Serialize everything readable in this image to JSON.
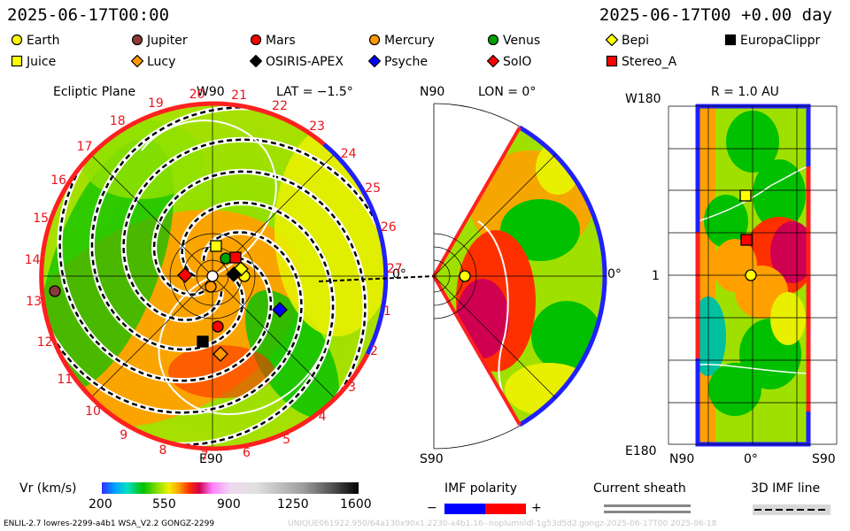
{
  "header": {
    "time_left": "2025-06-17T00:00",
    "time_right": "2025-06-17T00 +0.00 day"
  },
  "legend": [
    {
      "name": "Earth",
      "shape": "circle",
      "color": "#ffff00"
    },
    {
      "name": "Jupiter",
      "shape": "circle",
      "color": "#8b3a3a"
    },
    {
      "name": "Mars",
      "shape": "circle",
      "color": "#ff0000"
    },
    {
      "name": "Mercury",
      "shape": "circle",
      "color": "#ff9900"
    },
    {
      "name": "Venus",
      "shape": "circle",
      "color": "#00a000"
    },
    {
      "name": "Bepi",
      "shape": "diamond",
      "color": "#ffff00"
    },
    {
      "name": "EuropaClippr",
      "shape": "square",
      "color": "#000000"
    },
    {
      "name": "Juice",
      "shape": "square",
      "color": "#ffff00"
    },
    {
      "name": "Lucy",
      "shape": "diamond",
      "color": "#ff9900"
    },
    {
      "name": "OSIRIS-APEX",
      "shape": "diamond",
      "color": "#000000"
    },
    {
      "name": "Psyche",
      "shape": "diamond",
      "color": "#0000ff"
    },
    {
      "name": "SolO",
      "shape": "diamond",
      "color": "#ff0000"
    },
    {
      "name": "Stereo_A",
      "shape": "square",
      "color": "#ff0000"
    }
  ],
  "panels": {
    "ecliptic": {
      "title": "Ecliptic Plane",
      "top": "W90",
      "lat": "LAT = −1.5°",
      "bottom": "E90",
      "right": "0°",
      "rotations": [
        "20",
        "21",
        "22",
        "23",
        "24",
        "25",
        "26",
        "27",
        "1",
        "2",
        "3",
        "4",
        "5",
        "6",
        "7",
        "8",
        "9",
        "10",
        "11",
        "12",
        "13",
        "14",
        "15",
        "16",
        "17",
        "18",
        "19"
      ]
    },
    "meridional": {
      "top": "N90",
      "lon": "LON = 0°",
      "bottom": "S90",
      "right": "0°"
    },
    "sphere": {
      "top": "W180",
      "r": "R = 1.0 AU",
      "bottom": "E180",
      "left_tick": "1",
      "x_ticks": [
        "N90",
        "0°",
        "S90"
      ]
    }
  },
  "colorbar": {
    "label": "Vr (km/s)",
    "ticks": [
      "200",
      "550",
      "900",
      "1250",
      "1600"
    ],
    "range": [
      200,
      1600
    ],
    "colors": [
      "#3030ff",
      "#00a0ff",
      "#00e0c0",
      "#00c000",
      "#90e000",
      "#f0f000",
      "#ffa000",
      "#ff3000",
      "#d00050",
      "#ff80ff",
      "#f0c0f0",
      "#e0e0e0",
      "#a0a0a0",
      "#606060",
      "#000000"
    ]
  },
  "imf": {
    "label": "IMF polarity",
    "minus": "−",
    "plus": "+",
    "neg_color": "#0000ff",
    "pos_color": "#ff0000"
  },
  "current_sheath": {
    "label": "Current sheath"
  },
  "imf_line": {
    "label": "3D IMF line"
  },
  "footer": {
    "left": "ENLIL-2.7 lowres-2299-a4b1 WSA_V2.2 GONGZ-2299",
    "right": "UNIQUE061922.950/64a130x90x1.2230-a4b1.16--noplumnldl-1g53d5d2.gongz-2025-06-17T00    2025-06-18"
  },
  "chart_data": [
    {
      "type": "scatter",
      "title": "Ecliptic Plane",
      "bodies": [
        "Earth",
        "Jupiter",
        "Mars",
        "Mercury",
        "Venus",
        "Bepi",
        "EuropaClippr",
        "Juice",
        "Lucy",
        "OSIRIS-APEX",
        "Psyche",
        "SolO",
        "Stereo_A"
      ]
    },
    {
      "type": "heatmap",
      "title": "R = 1.0 AU",
      "x_ticks": [
        "N90",
        "0°",
        "S90"
      ],
      "y_ticks": [
        "W180",
        "1",
        "E180"
      ],
      "markers": [
        "Earth",
        "Juice",
        "Stereo_A"
      ]
    },
    {
      "type": "heatmap",
      "title": "Vr (km/s) colorbar",
      "range": [
        200,
        1600
      ],
      "ticks": [
        200,
        550,
        900,
        1250,
        1600
      ]
    }
  ]
}
